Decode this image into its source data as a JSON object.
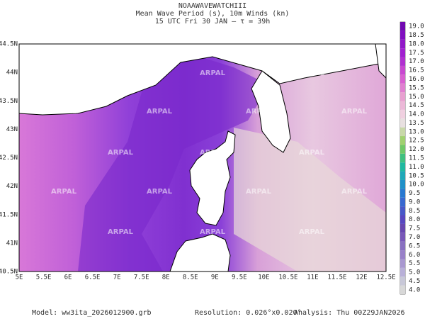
{
  "header": [
    "NOAAWAVEWATCHIII",
    "Mean Wave Period (s), 10m Winds (kn)",
    "15 UTC Fri 30 JAN  –  τ = 39h"
  ],
  "lon_labels": [
    "5E",
    "5.5E",
    "6E",
    "6.5E",
    "7E",
    "7.5E",
    "8E",
    "8.5E",
    "9E",
    "9.5E",
    "10E",
    "10.5E",
    "11E",
    "11.5E",
    "12E",
    "12.5E"
  ],
  "lat_labels": [
    "40.5N",
    "41N",
    "41.5N",
    "42N",
    "42.5N",
    "43N",
    "43.5N",
    "44N",
    "44.5N"
  ],
  "colorbar": {
    "labels": [
      "4.0",
      "4.5",
      "5.0",
      "5.5",
      "6.0",
      "6.5",
      "7.0",
      "7.5",
      "8.0",
      "8.5",
      "9.0",
      "9.5",
      "10.0",
      "10.5",
      "11.0",
      "11.5",
      "12.0",
      "12.5",
      "13.0",
      "13.5",
      "14.0",
      "14.5",
      "15.0",
      "15.5",
      "16.0",
      "16.5",
      "17.0",
      "17.5",
      "18.0",
      "18.5",
      "19.0"
    ],
    "colors": [
      "#d8d8d8",
      "#c8c8d8",
      "#b8b0d8",
      "#a898d0",
      "#9880c8",
      "#8870c0",
      "#7858b8",
      "#6848b0",
      "#5848c0",
      "#4858c8",
      "#3868d0",
      "#2878d0",
      "#2090c8",
      "#20a8b8",
      "#20b8a0",
      "#40c080",
      "#70c868",
      "#a0d070",
      "#c8d8a8",
      "#e8e0e0",
      "#f0d0e0",
      "#ecb8d8",
      "#e8a0d0",
      "#e080d0",
      "#d860d0",
      "#c848d0",
      "#b030d0",
      "#a020d0",
      "#9018c8",
      "#8010c0",
      "#7008b0"
    ]
  },
  "watermark": "ARPAL",
  "footer": {
    "model": "Model:  ww3ita_2026012900.grb",
    "resolution": "Resolution:  0.026°x0.020°",
    "analysis": "Analysis:  Thu  00Z29JAN2026"
  }
}
